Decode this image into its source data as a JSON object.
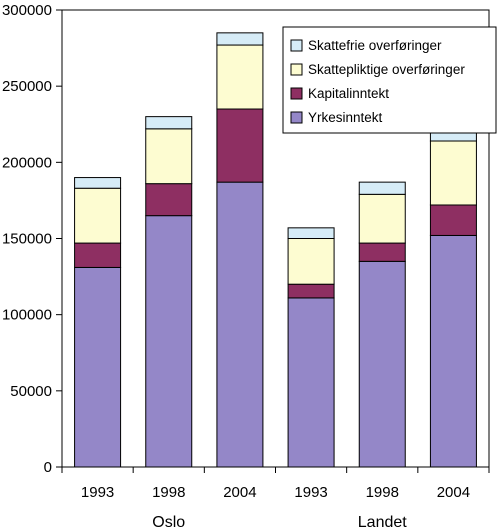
{
  "chart_data": {
    "type": "bar",
    "stacked": true,
    "categories": [
      "1993",
      "1998",
      "2004",
      "1993",
      "1998",
      "2004"
    ],
    "groups": [
      {
        "label": "Oslo",
        "categories": [
          "1993",
          "1998",
          "2004"
        ]
      },
      {
        "label": "Landet",
        "categories": [
          "1993",
          "1998",
          "2004"
        ]
      }
    ],
    "series": [
      {
        "name": "Yrkesinntekt",
        "color": "#9487c8",
        "values": [
          131000,
          165000,
          187000,
          111000,
          135000,
          152000
        ]
      },
      {
        "name": "Kapitalinntekt",
        "color": "#8e2f62",
        "values": [
          16000,
          21000,
          48000,
          9000,
          12000,
          20000
        ]
      },
      {
        "name": "Skattepliktige overføringer",
        "color": "#fdfcd1",
        "values": [
          36000,
          36000,
          42000,
          30000,
          32000,
          42000
        ]
      },
      {
        "name": "Skattefrie overføringer",
        "color": "#d6ecf7",
        "values": [
          7000,
          8000,
          8000,
          7000,
          8000,
          9000
        ]
      }
    ],
    "legend_order": [
      "Skattefrie overføringer",
      "Skattepliktige overføringer",
      "Kapitalinntekt",
      "Yrkesinntekt"
    ],
    "ylim": [
      0,
      300000
    ],
    "yticks": [
      "0",
      "50000",
      "100000",
      "150000",
      "200000",
      "250000",
      "300000"
    ],
    "legend_position": "top-right",
    "grid": false
  }
}
